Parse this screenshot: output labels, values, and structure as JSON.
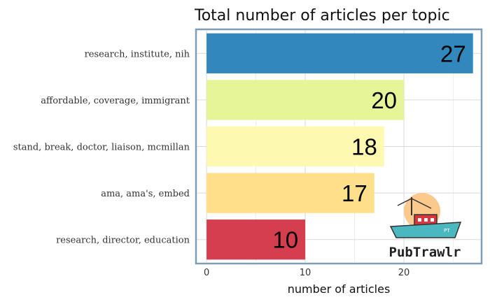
{
  "chart_data": {
    "type": "bar",
    "orientation": "horizontal",
    "title": "Total number of articles per topic",
    "xlabel": "number of articles",
    "ylabel": "",
    "xlim": [
      -1,
      27.8
    ],
    "xticks": [
      0,
      10,
      20
    ],
    "grid": true,
    "categories": [
      "research, institute, nih",
      "affordable, coverage, immigrant",
      "stand, break, doctor, liaison, mcmillan",
      "ama, ama's, embed",
      "research, director, education"
    ],
    "values": [
      27,
      20,
      18,
      17,
      10
    ],
    "colors": [
      "#3288bd",
      "#e6f598",
      "#fef9b0",
      "#fee08b",
      "#d53e4f"
    ]
  },
  "logo": {
    "text": "PubTrawlr",
    "badge": "PT"
  }
}
